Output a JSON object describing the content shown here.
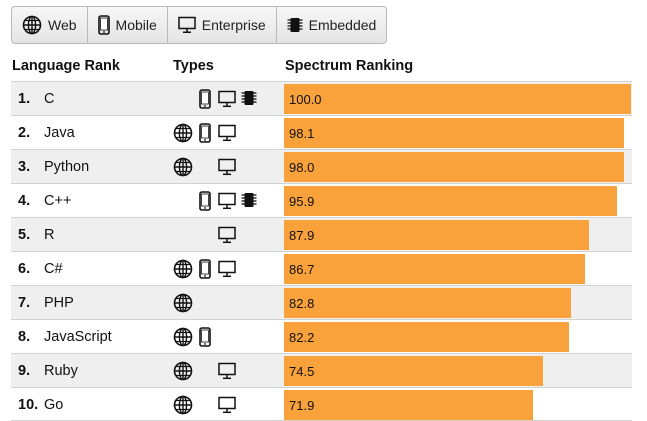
{
  "filters": [
    {
      "label": "Web",
      "icon": "globe-icon"
    },
    {
      "label": "Mobile",
      "icon": "mobile-icon"
    },
    {
      "label": "Enterprise",
      "icon": "monitor-icon"
    },
    {
      "label": "Embedded",
      "icon": "chip-icon"
    }
  ],
  "headers": {
    "rank": "Language Rank",
    "types": "Types",
    "spectrum": "Spectrum Ranking"
  },
  "bar_color": "#f9a13a",
  "rows": [
    {
      "rank": "1.",
      "language": "C",
      "types": [
        "mobile",
        "enterprise",
        "embedded"
      ],
      "score": "100.0",
      "value": 100.0
    },
    {
      "rank": "2.",
      "language": "Java",
      "types": [
        "web",
        "mobile",
        "enterprise"
      ],
      "score": "98.1",
      "value": 98.1
    },
    {
      "rank": "3.",
      "language": "Python",
      "types": [
        "web",
        "enterprise"
      ],
      "score": "98.0",
      "value": 98.0
    },
    {
      "rank": "4.",
      "language": "C++",
      "types": [
        "mobile",
        "enterprise",
        "embedded"
      ],
      "score": "95.9",
      "value": 95.9
    },
    {
      "rank": "5.",
      "language": "R",
      "types": [
        "enterprise"
      ],
      "score": "87.9",
      "value": 87.9
    },
    {
      "rank": "6.",
      "language": "C#",
      "types": [
        "web",
        "mobile",
        "enterprise"
      ],
      "score": "86.7",
      "value": 86.7
    },
    {
      "rank": "7.",
      "language": "PHP",
      "types": [
        "web"
      ],
      "score": "82.8",
      "value": 82.8
    },
    {
      "rank": "8.",
      "language": "JavaScript",
      "types": [
        "web",
        "mobile"
      ],
      "score": "82.2",
      "value": 82.2
    },
    {
      "rank": "9.",
      "language": "Ruby",
      "types": [
        "web",
        "enterprise"
      ],
      "score": "74.5",
      "value": 74.5
    },
    {
      "rank": "10.",
      "language": "Go",
      "types": [
        "web",
        "enterprise"
      ],
      "score": "71.9",
      "value": 71.9
    }
  ]
}
